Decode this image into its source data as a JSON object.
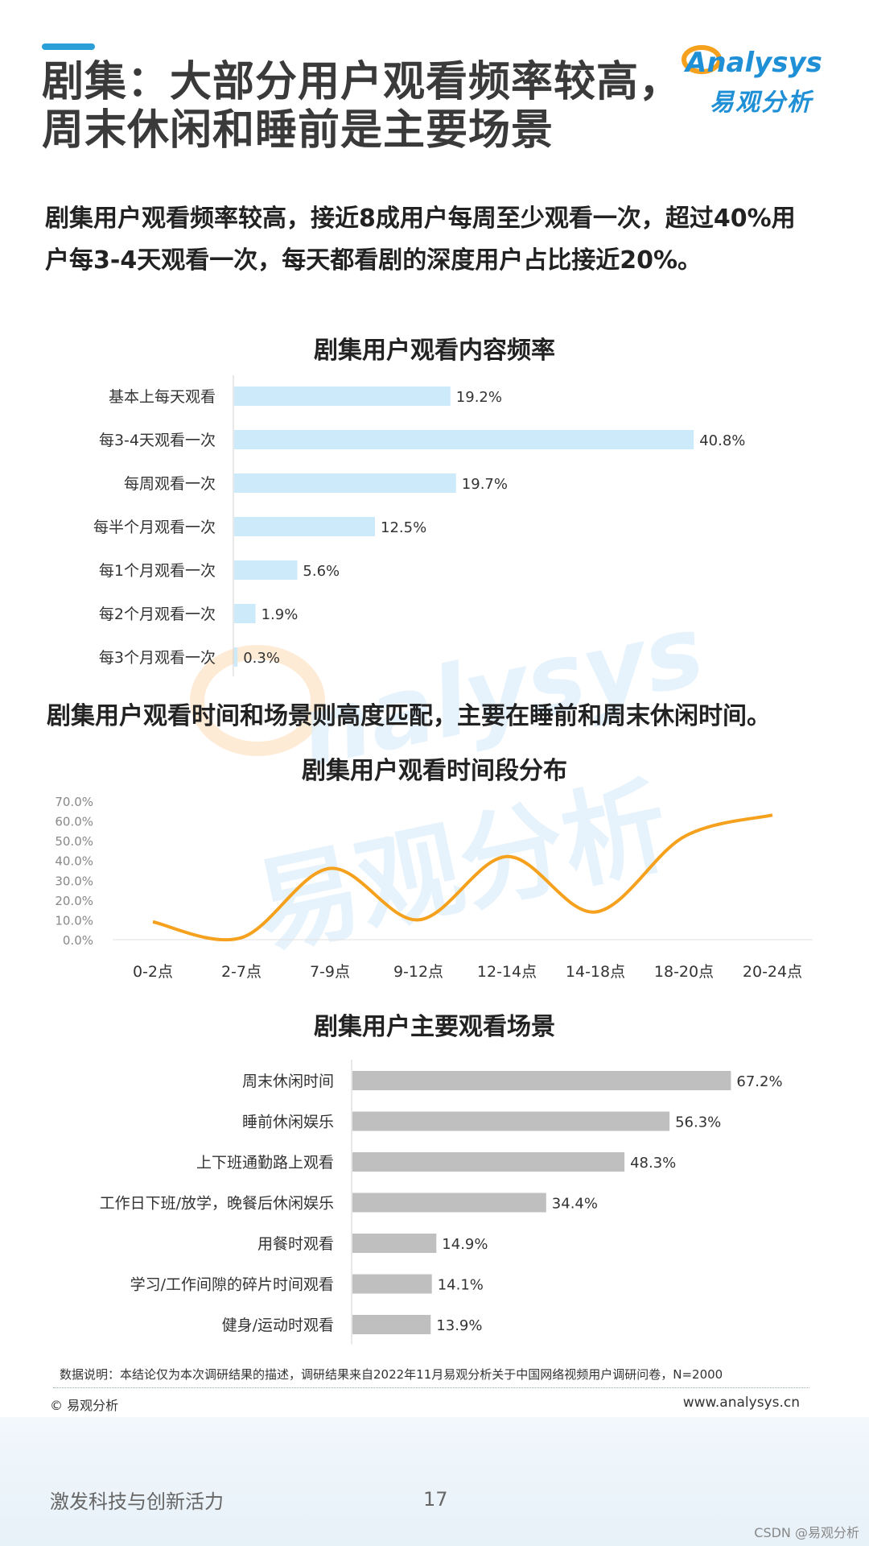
{
  "title": "剧集：大部分用户观看频率较高，\n周末休闲和睡前是主要场景",
  "logo": {
    "en": "Analysys",
    "cn": "易观分析"
  },
  "summary1": "剧集用户观看频率较高，接近8成用户每周至少观看一次，超过40%用户每3-4天观看一次，每天都看剧的深度用户占比接近20%。",
  "summary2": "剧集用户观看时间和场景则高度匹配，主要在睡前和周末休闲时间。",
  "watermark": {
    "en": "nalysys",
    "cn": "易观分析"
  },
  "chart_data": [
    {
      "type": "bar",
      "title": "剧集用户观看内容频率",
      "categories": [
        "基本上每天观看",
        "每3-4天观看一次",
        "每周观看一次",
        "每半个月观看一次",
        "每1个月观看一次",
        "每2个月观看一次",
        "每3个月观看一次"
      ],
      "values": [
        19.2,
        40.8,
        19.7,
        12.5,
        5.6,
        1.9,
        0.3
      ],
      "labels": [
        "19.2%",
        "40.8%",
        "19.7%",
        "12.5%",
        "5.6%",
        "1.9%",
        "0.3%"
      ],
      "color": "#cdeafb",
      "orientation": "horizontal"
    },
    {
      "type": "line",
      "title": "剧集用户观看时间段分布",
      "categories": [
        "0-2点",
        "2-7点",
        "7-9点",
        "9-12点",
        "12-14点",
        "14-18点",
        "18-20点",
        "20-24点"
      ],
      "values": [
        9,
        1,
        36,
        10,
        42,
        14,
        52,
        63
      ],
      "yticks": [
        "0.0%",
        "10.0%",
        "20.0%",
        "30.0%",
        "40.0%",
        "50.0%",
        "60.0%",
        "70.0%"
      ],
      "ylim": [
        0,
        70
      ],
      "color": "#f5a11d",
      "smooth": true
    },
    {
      "type": "bar",
      "title": "剧集用户主要观看场景",
      "categories": [
        "周末休闲时间",
        "睡前休闲娱乐",
        "上下班通勤路上观看",
        "工作日下班/放学，晚餐后休闲娱乐",
        "用餐时观看",
        "学习/工作间隙的碎片时间观看",
        "健身/运动时观看"
      ],
      "values": [
        67.2,
        56.3,
        48.3,
        34.4,
        14.9,
        14.1,
        13.9
      ],
      "labels": [
        "67.2%",
        "56.3%",
        "48.3%",
        "34.4%",
        "14.9%",
        "14.1%",
        "13.9%"
      ],
      "color": "#bfbfbf",
      "orientation": "horizontal"
    }
  ],
  "footer": {
    "note": "数据说明：本结论仅为本次调研结果的描述，调研结果来自2022年11月易观分析关于中国网络视频用户调研问卷，N=2000",
    "copyright": "© 易观分析",
    "website": "www.analysys.cn",
    "slogan": "激发科技与创新活力",
    "page": "17",
    "csdn": "CSDN @易观分析"
  }
}
